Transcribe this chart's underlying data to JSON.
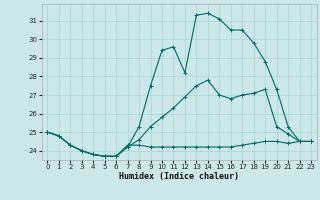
{
  "xlabel": "Humidex (Indice chaleur)",
  "background_color": "#cce8e8",
  "grid_color": "#a8d4d4",
  "line_color": "#006868",
  "xlim": [
    -0.5,
    23.5
  ],
  "ylim": [
    23.5,
    31.9
  ],
  "yticks": [
    24,
    25,
    26,
    27,
    28,
    29,
    30,
    31
  ],
  "xticks": [
    0,
    1,
    2,
    3,
    4,
    5,
    6,
    7,
    8,
    9,
    10,
    11,
    12,
    13,
    14,
    15,
    16,
    17,
    18,
    19,
    20,
    21,
    22,
    23
  ],
  "line1_x": [
    0,
    1,
    2,
    3,
    4,
    5,
    6,
    7,
    8,
    9,
    10,
    11,
    12,
    13,
    14,
    15,
    16,
    17,
    18,
    19,
    20,
    21,
    22,
    23
  ],
  "line1_y": [
    25.0,
    24.8,
    24.3,
    24.0,
    23.8,
    23.7,
    23.7,
    24.3,
    24.3,
    24.2,
    24.2,
    24.2,
    24.2,
    24.2,
    24.2,
    24.2,
    24.2,
    24.3,
    24.4,
    24.5,
    24.5,
    24.4,
    24.5,
    24.5
  ],
  "line2_x": [
    0,
    1,
    2,
    3,
    4,
    5,
    6,
    7,
    8,
    9,
    10,
    11,
    12,
    13,
    14,
    15,
    16,
    17,
    18,
    19,
    20,
    21,
    22,
    23
  ],
  "line2_y": [
    25.0,
    24.8,
    24.3,
    24.0,
    23.8,
    23.7,
    23.7,
    24.2,
    24.6,
    25.3,
    25.8,
    26.3,
    26.9,
    27.5,
    27.8,
    27.0,
    26.8,
    27.0,
    27.1,
    27.3,
    25.3,
    24.9,
    24.5,
    24.5
  ],
  "line3_x": [
    0,
    1,
    2,
    3,
    4,
    5,
    6,
    7,
    8,
    9,
    10,
    11,
    12,
    13,
    14,
    15,
    16,
    17,
    18,
    19,
    20,
    21,
    22,
    23
  ],
  "line3_y": [
    25.0,
    24.8,
    24.3,
    24.0,
    23.8,
    23.7,
    23.7,
    24.2,
    25.3,
    27.5,
    29.4,
    29.6,
    28.2,
    31.3,
    31.4,
    31.1,
    30.5,
    30.5,
    29.8,
    28.8,
    27.3,
    25.3,
    24.5,
    24.5
  ]
}
